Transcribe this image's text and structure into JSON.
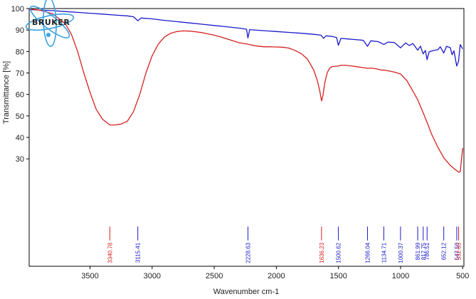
{
  "chart_data": {
    "type": "line",
    "title": "",
    "xlabel": "Wavenumber cm-1",
    "ylabel": "Transmittance [%]",
    "xlim": [
      3990,
      490
    ],
    "ylim": [
      -20,
      100
    ],
    "x_reversed": true,
    "x_ticks": [
      3500,
      3000,
      2500,
      2000,
      1500,
      1000,
      500
    ],
    "y_ticks": [
      30,
      40,
      50,
      60,
      70,
      80,
      90,
      100
    ],
    "grid": false,
    "legend": "none",
    "logo_text": "BRUKER",
    "series": [
      {
        "color": "#1a1acc",
        "x": [
          3990,
          3900,
          3800,
          3700,
          3600,
          3500,
          3400,
          3300,
          3200,
          3150,
          3115,
          3090,
          3000,
          2900,
          2800,
          2700,
          2600,
          2500,
          2400,
          2300,
          2240,
          2229,
          2215,
          2150,
          2000,
          1900,
          1800,
          1700,
          1640,
          1620,
          1600,
          1550,
          1515,
          1501,
          1480,
          1420,
          1380,
          1300,
          1266,
          1240,
          1180,
          1135,
          1100,
          1050,
          1000,
          960,
          930,
          900,
          862,
          840,
          818,
          800,
          787,
          770,
          740,
          700,
          680,
          652,
          630,
          600,
          585,
          570,
          548,
          533,
          520,
          500
        ],
        "y": [
          99.5,
          99.3,
          99,
          98.6,
          98.2,
          97.8,
          97.4,
          97,
          96.6,
          96.2,
          94.3,
          95.6,
          95.2,
          94.5,
          93.9,
          93.3,
          92.7,
          92.1,
          91.5,
          90.9,
          90.4,
          86.3,
          90.2,
          89.9,
          89.3,
          88.9,
          88.5,
          88,
          87.6,
          86.1,
          87.3,
          87,
          86.5,
          82.9,
          86.1,
          85.8,
          85.6,
          85.2,
          82.4,
          85,
          84.6,
          83.3,
          84.4,
          84.2,
          81.7,
          84,
          82.8,
          83.7,
          80.6,
          82.5,
          78.9,
          80.5,
          76.2,
          79.8,
          80.4,
          80.8,
          82.2,
          79.3,
          82.4,
          81.8,
          78.5,
          80.3,
          73.2,
          75.5,
          83.2,
          81.2
        ]
      },
      {
        "color": "#d62020",
        "x": [
          3990,
          3900,
          3800,
          3700,
          3650,
          3600,
          3550,
          3500,
          3450,
          3400,
          3341,
          3300,
          3250,
          3200,
          3150,
          3100,
          3050,
          3000,
          2950,
          2900,
          2850,
          2800,
          2750,
          2700,
          2650,
          2600,
          2550,
          2500,
          2450,
          2400,
          2350,
          2300,
          2250,
          2229,
          2200,
          2150,
          2100,
          2050,
          2000,
          1950,
          1900,
          1850,
          1800,
          1750,
          1700,
          1670,
          1650,
          1636,
          1625,
          1610,
          1590,
          1570,
          1550,
          1520,
          1501,
          1480,
          1450,
          1400,
          1350,
          1300,
          1266,
          1240,
          1200,
          1150,
          1135,
          1100,
          1050,
          1000,
          950,
          900,
          862,
          818,
          787,
          750,
          700,
          652,
          600,
          570,
          548,
          533,
          520,
          500
        ],
        "y": [
          99.8,
          99.2,
          97.5,
          93,
          88,
          80,
          70,
          61,
          53,
          48.5,
          45.8,
          45.8,
          46.2,
          47.5,
          52,
          60,
          70,
          78,
          83.5,
          86.8,
          88.5,
          89.3,
          89.6,
          89.5,
          89.2,
          88.8,
          88.2,
          87.6,
          86.8,
          85.9,
          85,
          84.1,
          83.6,
          83.4,
          83,
          82.5,
          82.2,
          82.2,
          82.1,
          82,
          81.6,
          80.5,
          79,
          76.5,
          71.5,
          66.5,
          61.5,
          57,
          59.5,
          65.5,
          70.2,
          72.4,
          73,
          73.1,
          73.2,
          73.6,
          73.6,
          73.3,
          72.9,
          72.5,
          72.2,
          72.3,
          72,
          71.3,
          71.4,
          71,
          70.4,
          69.5,
          66.5,
          61.5,
          57.5,
          51.5,
          47,
          41.5,
          35.5,
          30.5,
          27,
          25.5,
          24.5,
          23.8,
          24,
          35
        ]
      }
    ],
    "peaks": [
      {
        "label": "3340.78",
        "x": 3340.78,
        "color": "#d62020"
      },
      {
        "label": "3115.41",
        "x": 3115.41,
        "color": "#1a1acc"
      },
      {
        "label": "2228.63",
        "x": 2228.63,
        "color": "#1a1acc"
      },
      {
        "label": "1636.23",
        "x": 1636.23,
        "color": "#d62020"
      },
      {
        "label": "1500.62",
        "x": 1500.62,
        "color": "#1a1acc"
      },
      {
        "label": "1266.04",
        "x": 1266.04,
        "color": "#1a1acc"
      },
      {
        "label": "1134.71",
        "x": 1134.71,
        "color": "#1a1acc"
      },
      {
        "label": "1000.37",
        "x": 1000.37,
        "color": "#1a1acc"
      },
      {
        "label": "861.99",
        "x": 861.99,
        "color": "#1a1acc"
      },
      {
        "label": "817.75",
        "x": 817.75,
        "color": "#1a1acc"
      },
      {
        "label": "786.51",
        "x": 786.51,
        "color": "#1a1acc"
      },
      {
        "label": "652.12",
        "x": 652.12,
        "color": "#1a1acc"
      },
      {
        "label": "547.50",
        "x": 547.5,
        "color": "#1a1acc"
      },
      {
        "label": "532.63",
        "x": 532.63,
        "color": "#d62020"
      }
    ]
  }
}
